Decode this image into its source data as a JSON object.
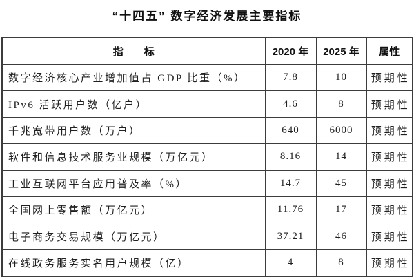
{
  "page": {
    "title": "“十四五” 数字经济发展主要指标"
  },
  "table": {
    "headers": {
      "indicator": "指　　标",
      "y2020": "2020 年",
      "y2025": "2025 年",
      "attribute": "属性"
    },
    "rows": [
      {
        "indicator": "数字经济核心产业增加值占 GDP 比重（%）",
        "y2020": "7.8",
        "y2025": "10",
        "attribute": "预期性"
      },
      {
        "indicator": "IPv6 活跃用户数（亿户）",
        "y2020": "4.6",
        "y2025": "8",
        "attribute": "预期性"
      },
      {
        "indicator": "千兆宽带用户数（万户）",
        "y2020": "640",
        "y2025": "6000",
        "attribute": "预期性"
      },
      {
        "indicator": "软件和信息技术服务业规模（万亿元）",
        "y2020": "8.16",
        "y2025": "14",
        "attribute": "预期性"
      },
      {
        "indicator": "工业互联网平台应用普及率（%）",
        "y2020": "14.7",
        "y2025": "45",
        "attribute": "预期性"
      },
      {
        "indicator": "全国网上零售额（万亿元）",
        "y2020": "11.76",
        "y2025": "17",
        "attribute": "预期性"
      },
      {
        "indicator": "电子商务交易规模（万亿元）",
        "y2020": "37.21",
        "y2025": "46",
        "attribute": "预期性"
      },
      {
        "indicator": "在线政务服务实名用户规模（亿）",
        "y2020": "4",
        "y2025": "8",
        "attribute": "预期性"
      }
    ]
  },
  "colors": {
    "background": "#ffffff",
    "border": "#3c3c3c",
    "text": "#1c1c1c"
  }
}
